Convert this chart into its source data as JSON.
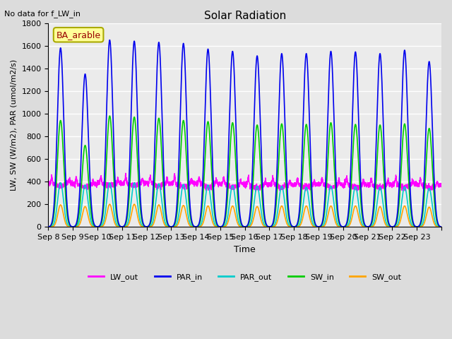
{
  "title": "Solar Radiation",
  "subtitle": "No data for f_LW_in",
  "ylabel": "LW, SW (W/m2), PAR (umol/m2/s)",
  "xlabel": "Time",
  "annotation": "BA_arable",
  "ylim": [
    0,
    1800
  ],
  "yticks": [
    0,
    200,
    400,
    600,
    800,
    1000,
    1200,
    1400,
    1600,
    1800
  ],
  "x_tick_positions": [
    0,
    1,
    2,
    3,
    4,
    5,
    6,
    7,
    8,
    9,
    10,
    11,
    12,
    13,
    14,
    15,
    16
  ],
  "x_tick_labels": [
    "Sep 8",
    "Sep 9",
    "Sep 10",
    "Sep 11",
    "Sep 12",
    "Sep 13",
    "Sep 14",
    "Sep 15",
    "Sep 16",
    "Sep 17",
    "Sep 18",
    "Sep 19",
    "Sep 20",
    "Sep 21",
    "Sep 22",
    "Sep 23",
    ""
  ],
  "n_days": 16,
  "par_in_peaks": [
    1580,
    1350,
    1650,
    1640,
    1630,
    1620,
    1570,
    1550,
    1510,
    1530,
    1530,
    1550,
    1545,
    1530,
    1560,
    1460
  ],
  "sw_in_peaks": [
    940,
    720,
    980,
    970,
    960,
    940,
    930,
    920,
    900,
    910,
    905,
    920,
    905,
    900,
    910,
    870
  ],
  "par_out_peaks": [
    390,
    370,
    390,
    390,
    380,
    375,
    370,
    365,
    360,
    360,
    350,
    360,
    355,
    350,
    355,
    340
  ],
  "sw_out_peaks": [
    195,
    180,
    200,
    200,
    195,
    190,
    185,
    185,
    180,
    185,
    185,
    185,
    185,
    180,
    185,
    175
  ],
  "lw_out_bases": [
    385,
    375,
    388,
    386,
    384,
    382,
    378,
    376,
    372,
    374,
    372,
    376,
    374,
    372,
    376,
    370
  ],
  "series_colors": {
    "PAR_in": "#0000EE",
    "SW_in": "#00CC00",
    "PAR_out": "#00CCCC",
    "LW_out": "#FF00FF",
    "SW_out": "#FFA500"
  },
  "bg_color": "#DCDCDC",
  "plot_bg": "#EBEBEB",
  "grid_color": "#FFFFFF",
  "legend_items": [
    {
      "label": "LW_out",
      "color": "#FF00FF"
    },
    {
      "label": "PAR_in",
      "color": "#0000EE"
    },
    {
      "label": "PAR_out",
      "color": "#00CCCC"
    },
    {
      "label": "SW_in",
      "color": "#00CC00"
    },
    {
      "label": "SW_out",
      "color": "#FFA500"
    }
  ]
}
